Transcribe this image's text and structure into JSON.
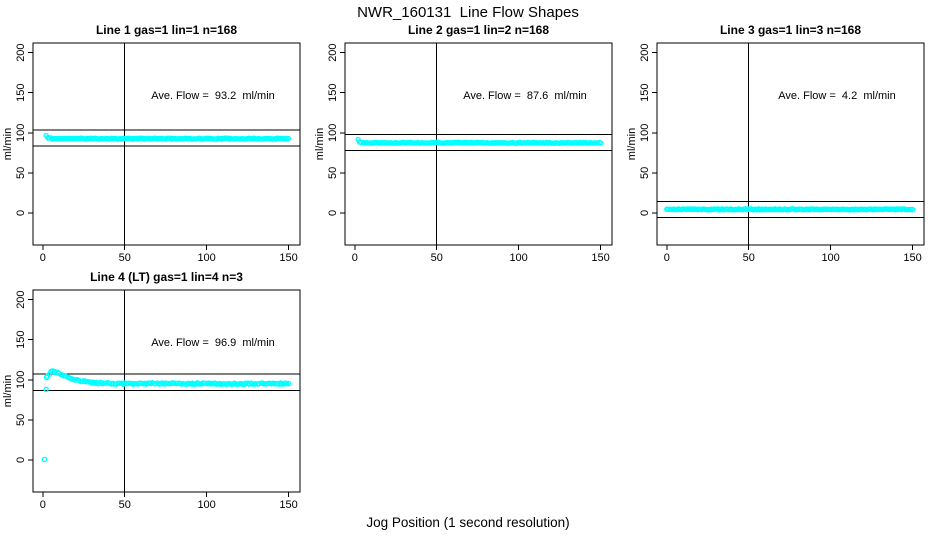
{
  "figure": {
    "title": "NWR_160131  Line Flow Shapes",
    "xlabel": "Jog Position (1 second resolution)",
    "background_color": "#ffffff",
    "axis_color": "#000000",
    "point_color": "#00ffff"
  },
  "chart_data": [
    {
      "type": "scatter",
      "title": "Line 1 gas=1 lin=1 n=168",
      "annotation": "Ave. Flow =  93.2  ml/min",
      "ave_flow_ml_min": 93.2,
      "gas": 1,
      "lin": 1,
      "n": 168,
      "ylabel": "ml/min",
      "xticks": [
        0,
        50,
        100,
        150
      ],
      "yticks": [
        0,
        50,
        100,
        150,
        200
      ],
      "xlim": [
        -6,
        157
      ],
      "ylim": [
        -40,
        212
      ],
      "vline_x": 50,
      "hlines": [
        103.2,
        83.2
      ],
      "grid_position": {
        "row": 0,
        "col": 0
      },
      "series": {
        "start_points": [
          [
            2,
            96.5
          ]
        ],
        "keyframes": [
          [
            3,
            93.6
          ],
          [
            6,
            92.8
          ],
          [
            150,
            92.6
          ]
        ],
        "x_step": 1,
        "jitter": 0.55,
        "x_jitter": 0.15,
        "seed": 11
      }
    },
    {
      "type": "scatter",
      "title": "Line 2 gas=1 lin=2 n=168",
      "annotation": "Ave. Flow =  87.6  ml/min",
      "ave_flow_ml_min": 87.6,
      "gas": 1,
      "lin": 2,
      "n": 168,
      "ylabel": "ml/min",
      "xticks": [
        0,
        50,
        100,
        150
      ],
      "yticks": [
        0,
        50,
        100,
        150,
        200
      ],
      "xlim": [
        -6,
        157
      ],
      "ylim": [
        -40,
        212
      ],
      "vline_x": 50,
      "hlines": [
        97.6,
        77.6
      ],
      "grid_position": {
        "row": 0,
        "col": 1
      },
      "series": {
        "start_points": [
          [
            2,
            91.5
          ]
        ],
        "keyframes": [
          [
            3,
            88.3
          ],
          [
            6,
            87.6
          ],
          [
            150,
            87.4
          ]
        ],
        "x_step": 1,
        "jitter": 0.55,
        "x_jitter": 0.15,
        "seed": 22
      }
    },
    {
      "type": "scatter",
      "title": "Line 3 gas=1 lin=3 n=168",
      "annotation": "Ave. Flow =  4.2  ml/min",
      "ave_flow_ml_min": 4.2,
      "gas": 1,
      "lin": 3,
      "n": 168,
      "ylabel": "ml/min",
      "xticks": [
        0,
        50,
        100,
        150
      ],
      "yticks": [
        0,
        50,
        100,
        150,
        200
      ],
      "xlim": [
        -6,
        157
      ],
      "ylim": [
        -40,
        212
      ],
      "vline_x": 50,
      "hlines": [
        14.2,
        -5.8
      ],
      "grid_position": {
        "row": 0,
        "col": 2
      },
      "series": {
        "start_points": [],
        "keyframes": [
          [
            0,
            4.5
          ],
          [
            150,
            4.4
          ]
        ],
        "x_step": 1,
        "jitter": 0.6,
        "x_jitter": 0.15,
        "seed": 33
      }
    },
    {
      "type": "scatter",
      "title": "Line 4 (LT) gas=1 lin=4 n=3",
      "annotation": "Ave. Flow =  96.9  ml/min",
      "ave_flow_ml_min": 96.9,
      "gas": 1,
      "lin": 4,
      "n": 3,
      "ylabel": "ml/min",
      "xticks": [
        0,
        50,
        100,
        150
      ],
      "yticks": [
        0,
        50,
        100,
        150,
        200
      ],
      "xlim": [
        -6,
        157
      ],
      "ylim": [
        -40,
        212
      ],
      "vline_x": 50,
      "hlines": [
        106.9,
        86.9
      ],
      "grid_position": {
        "row": 1,
        "col": 0
      },
      "series": {
        "start_points": [
          [
            1,
            0.5
          ],
          [
            2,
            88
          ],
          [
            2.3,
            103
          ]
        ],
        "keyframes": [
          [
            3,
            104
          ],
          [
            4,
            108
          ],
          [
            5,
            110
          ],
          [
            6,
            111
          ],
          [
            8,
            109.5
          ],
          [
            10,
            107.5
          ],
          [
            13,
            105
          ],
          [
            16,
            102.5
          ],
          [
            20,
            100
          ],
          [
            25,
            98
          ],
          [
            30,
            96.5
          ],
          [
            38,
            95.5
          ],
          [
            50,
            95.2
          ],
          [
            80,
            95.4
          ],
          [
            110,
            95.0
          ],
          [
            150,
            95.2
          ]
        ],
        "x_step": 1,
        "jitter": 0.9,
        "x_jitter": 0.3,
        "seed": 44
      }
    }
  ]
}
